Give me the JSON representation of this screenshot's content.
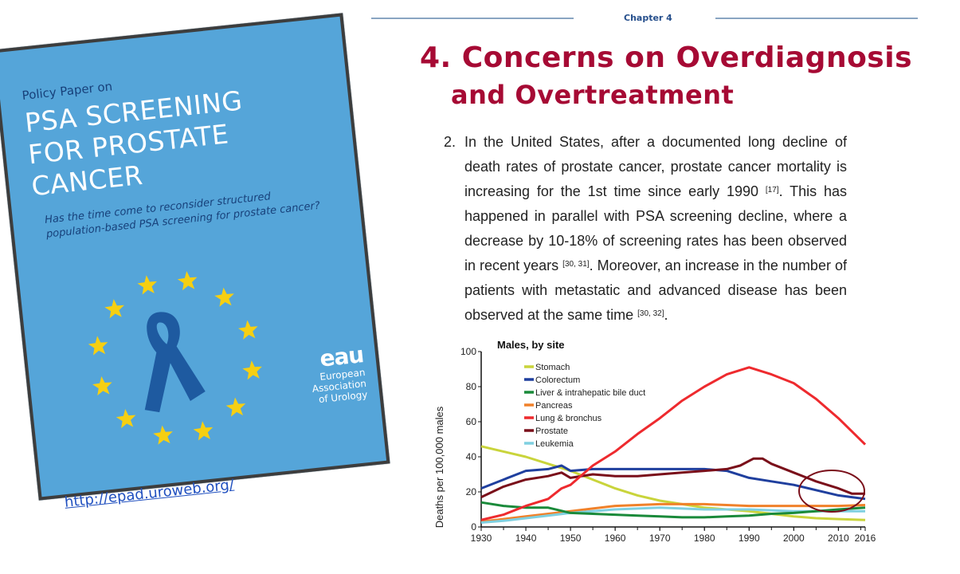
{
  "cover": {
    "policy_label": "Policy Paper on",
    "title_lines": [
      "PSA SCREENING",
      "FOR PROSTATE",
      "CANCER"
    ],
    "subtitle": "Has the time come to reconsider structured population-based PSA screening for prostate cancer?",
    "ribbon_icon": "awareness-ribbon-icon",
    "star_count": 12,
    "org_logo": "eau",
    "org_name_lines": [
      "European",
      "Association",
      "of Urology"
    ],
    "link": "http://epad.uroweb.org/",
    "colors": {
      "background": "#55a5d9",
      "title": "#ffffff",
      "accent_text": "#17407a",
      "stars": "#f6cf12",
      "ribbon": "#1e5aa0"
    }
  },
  "page": {
    "chapter_label": "Chapter 4",
    "heading_line1": "4. Concerns on Overdiagnosis",
    "heading_line2": "and Overtreatment",
    "heading_color": "#a60a34",
    "item_number": "2.",
    "paragraph_parts": [
      {
        "text": "In the United States, after a documented long decline of death rates of prostate cancer, prostate cancer mortality is increasing for the 1st time since early 1990 "
      },
      {
        "sup": "[17]"
      },
      {
        "text": ". This has happened in parallel with PSA screening decline, where a decrease by 10-18% of screening rates has been observed in recent years "
      },
      {
        "sup": "[30, 31]"
      },
      {
        "text": ". Moreover, an increase in the number of patients with metastatic and advanced disease has been observed at the same time "
      },
      {
        "sup": "[30, 32]"
      },
      {
        "text": "."
      }
    ]
  },
  "chart_data": {
    "type": "line",
    "title": "Males, by site",
    "xlabel": "",
    "ylabel": "Deaths per 100,000 males",
    "xlim": [
      1930,
      2016
    ],
    "ylim": [
      0,
      100
    ],
    "xticks": [
      1930,
      1940,
      1950,
      1960,
      1970,
      1980,
      1990,
      2000,
      2010,
      2016
    ],
    "yticks": [
      0,
      20,
      40,
      60,
      80,
      100
    ],
    "grid": false,
    "legend_position": "top-left",
    "annotation": "circle highlighting 2010-2016 prostate and colorectum rates",
    "series": [
      {
        "name": "Stomach",
        "color": "#c9d43b",
        "x": [
          1930,
          1935,
          1940,
          1945,
          1950,
          1955,
          1960,
          1965,
          1970,
          1975,
          1980,
          1985,
          1990,
          1995,
          2000,
          2005,
          2010,
          2016
        ],
        "y": [
          46,
          43,
          40,
          36,
          32,
          27,
          22,
          18,
          15,
          13,
          11,
          10,
          9,
          7.5,
          6,
          5,
          4.5,
          4
        ]
      },
      {
        "name": "Colorectum",
        "color": "#1f3f9e",
        "x": [
          1930,
          1935,
          1940,
          1945,
          1948,
          1950,
          1955,
          1960,
          1965,
          1970,
          1975,
          1980,
          1985,
          1990,
          1995,
          2000,
          2005,
          2010,
          2013,
          2016
        ],
        "y": [
          22,
          27,
          32,
          33,
          35,
          32,
          33,
          33,
          33,
          33,
          33,
          33,
          32,
          28,
          26,
          24,
          21,
          18,
          17,
          16
        ]
      },
      {
        "name": "Liver & intrahepatic bile duct",
        "color": "#1a8a3a",
        "x": [
          1930,
          1935,
          1940,
          1945,
          1950,
          1955,
          1960,
          1965,
          1970,
          1975,
          1980,
          1985,
          1990,
          1995,
          2000,
          2005,
          2010,
          2016
        ],
        "y": [
          14,
          12,
          11,
          11,
          8,
          7.5,
          7,
          6.5,
          6,
          5.5,
          5.5,
          6,
          6.5,
          7.5,
          8,
          9,
          10,
          11
        ]
      },
      {
        "name": "Pancreas",
        "color": "#f0812a",
        "x": [
          1930,
          1935,
          1940,
          1945,
          1950,
          1955,
          1960,
          1965,
          1970,
          1975,
          1980,
          1985,
          1990,
          1995,
          2000,
          2005,
          2010,
          2016
        ],
        "y": [
          3,
          4.5,
          6,
          7.5,
          9,
          10.5,
          12,
          12.5,
          13,
          13,
          13,
          12.5,
          12,
          12,
          12,
          12,
          12,
          12.5
        ]
      },
      {
        "name": "Lung & bronchus",
        "color": "#ee2a2e",
        "x": [
          1930,
          1935,
          1940,
          1945,
          1948,
          1950,
          1955,
          1960,
          1965,
          1970,
          1975,
          1980,
          1985,
          1990,
          1995,
          2000,
          2005,
          2010,
          2016
        ],
        "y": [
          4,
          7,
          12,
          16,
          22,
          24,
          35,
          43,
          53,
          62,
          72,
          80,
          87,
          91,
          87,
          82,
          73,
          62,
          47
        ]
      },
      {
        "name": "Prostate",
        "color": "#7a0f1a",
        "x": [
          1930,
          1935,
          1940,
          1945,
          1948,
          1950,
          1955,
          1960,
          1965,
          1970,
          1975,
          1980,
          1985,
          1988,
          1991,
          1993,
          1995,
          2000,
          2005,
          2010,
          2013,
          2016
        ],
        "y": [
          17,
          23,
          27,
          29,
          31,
          28,
          30,
          29,
          29,
          30,
          31,
          32,
          33,
          35,
          39,
          39,
          36,
          31,
          26,
          22,
          19,
          19
        ]
      },
      {
        "name": "Leukemia",
        "color": "#7fd0e0",
        "x": [
          1930,
          1935,
          1940,
          1945,
          1950,
          1955,
          1960,
          1965,
          1970,
          1975,
          1980,
          1985,
          1990,
          1995,
          2000,
          2005,
          2010,
          2016
        ],
        "y": [
          2.5,
          3.5,
          5,
          6.5,
          8,
          9,
          10,
          10.5,
          11,
          10.5,
          10,
          10,
          10,
          9.5,
          9,
          9,
          9,
          9
        ]
      }
    ]
  }
}
